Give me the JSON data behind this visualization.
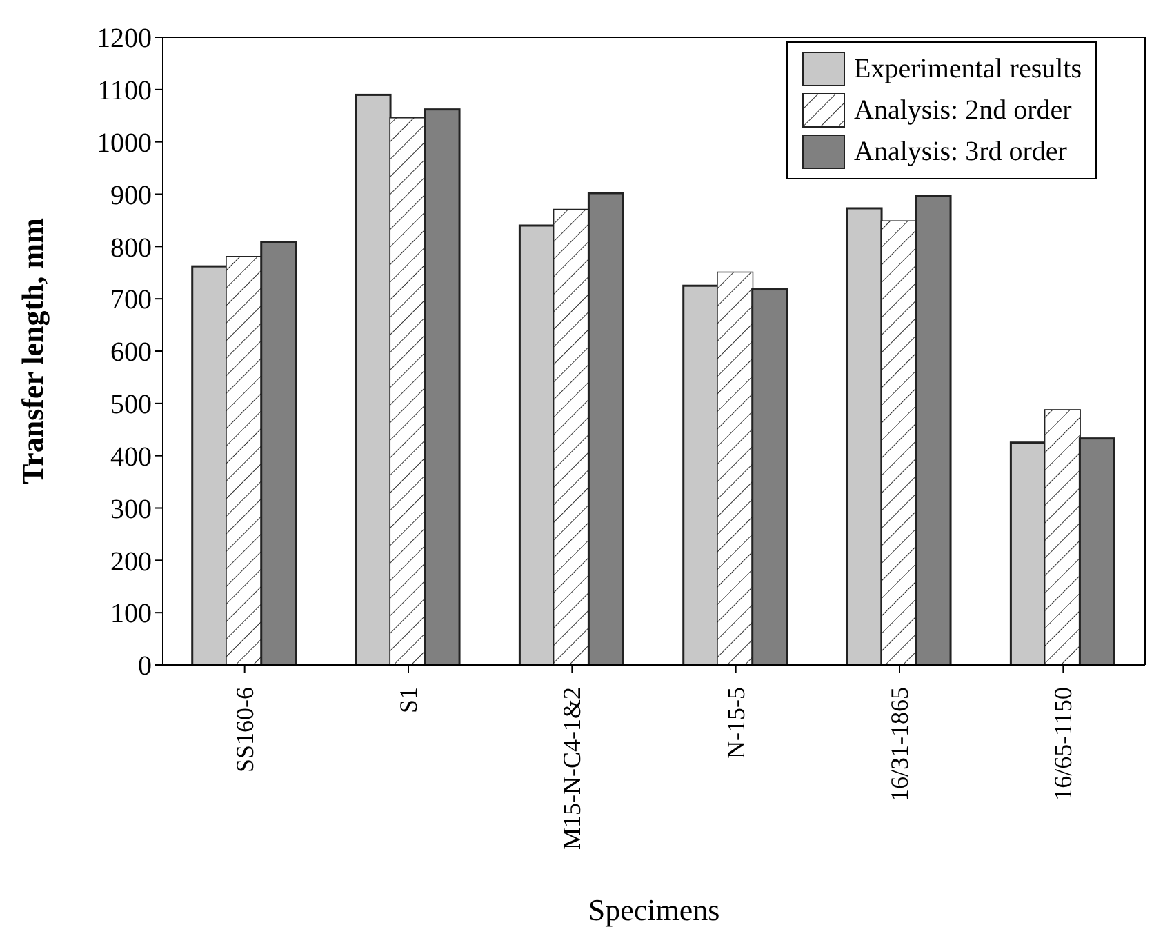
{
  "chart_data": {
    "type": "bar",
    "xlabel": "Specimens",
    "ylabel": "Transfer length, mm",
    "categories": [
      "SS160-6",
      "S1",
      "M15-N-C4-1&2",
      "N-15-5",
      "16/31-1865",
      "16/65-1150"
    ],
    "series": [
      {
        "name": "Experimental results",
        "color": "#c8c8c8",
        "values": [
          762,
          1090,
          840,
          725,
          873,
          425
        ]
      },
      {
        "name": "Analysis: 2nd order",
        "color": "#ffffff",
        "values": [
          780,
          1045,
          870,
          750,
          848,
          487
        ]
      },
      {
        "name": "Analysis: 3rd order",
        "color": "#808080",
        "values": [
          808,
          1062,
          902,
          718,
          897,
          433
        ]
      }
    ],
    "ylim": [
      0,
      1200
    ],
    "yticks": [
      0,
      100,
      200,
      300,
      400,
      500,
      600,
      700,
      800,
      900,
      1000,
      1100,
      1200
    ],
    "grid": false,
    "legend": "top right"
  }
}
